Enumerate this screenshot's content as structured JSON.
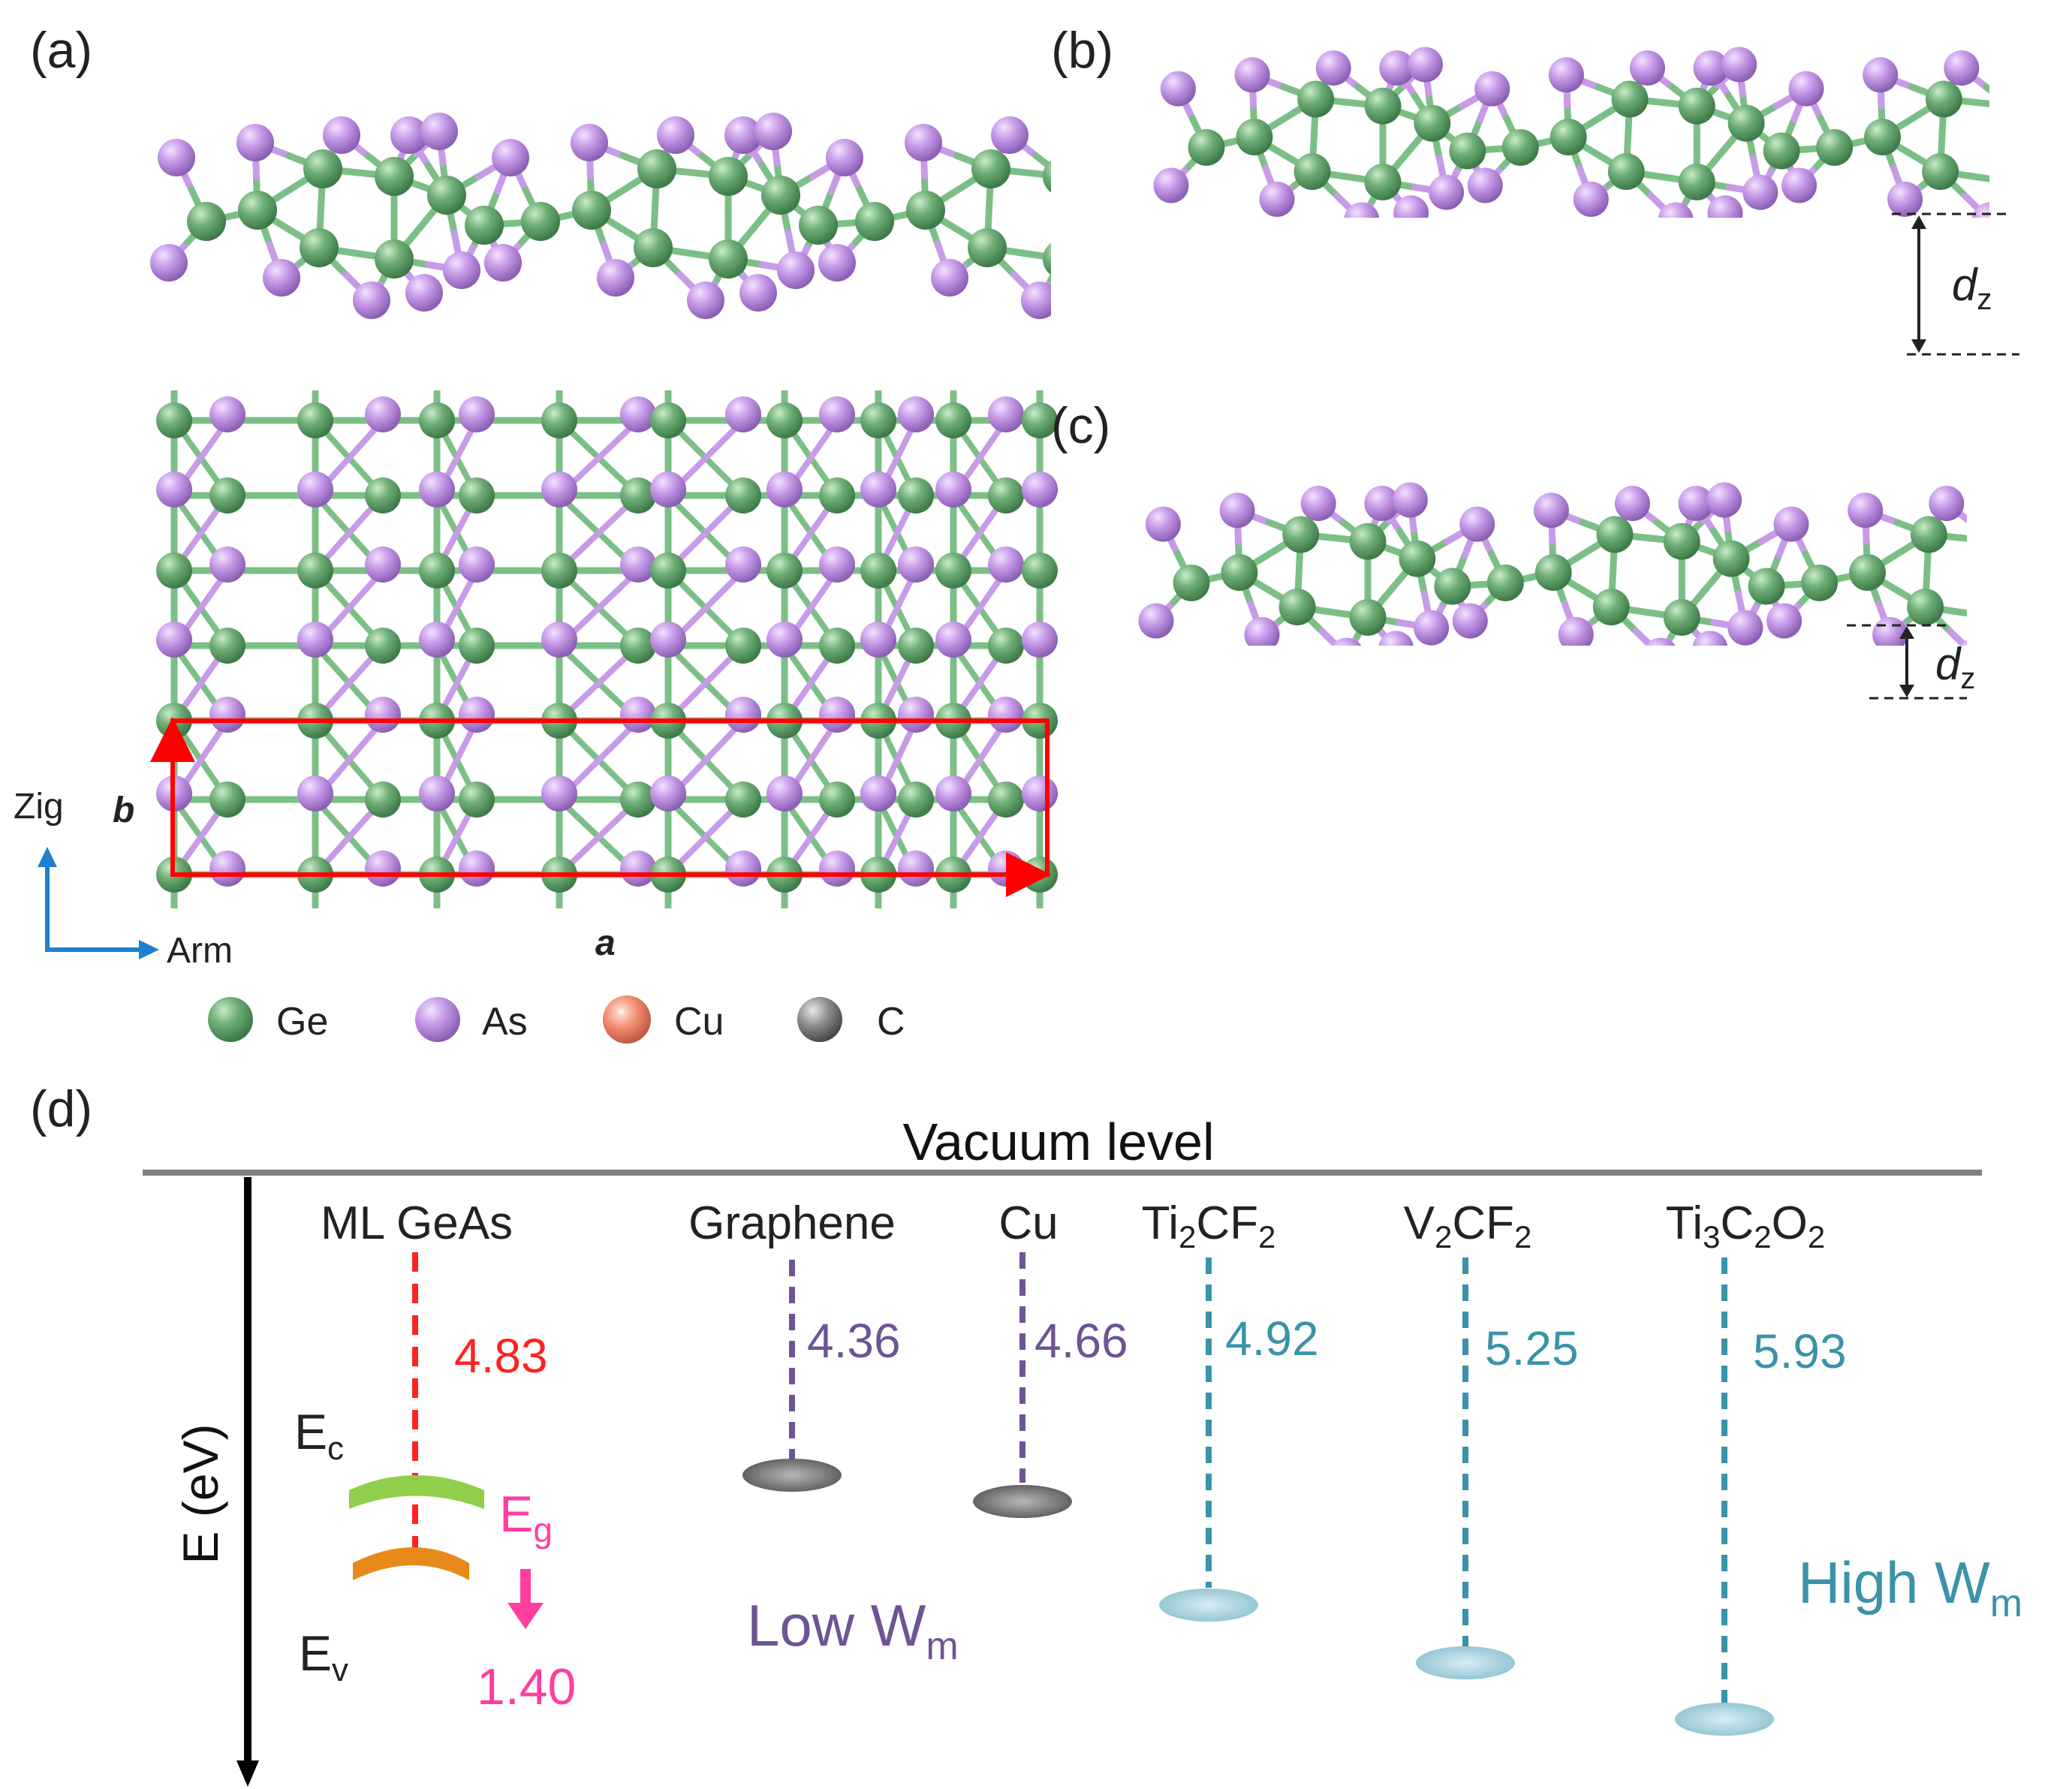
{
  "panels": {
    "a": "(a)",
    "b": "(b)",
    "c": "(c)",
    "d": "(d)"
  },
  "axes_a": {
    "zig": "Zig",
    "arm": "Arm",
    "b": "b",
    "a": "a"
  },
  "dz": {
    "d": "d",
    "sub": "z"
  },
  "legend": [
    {
      "label": "Ge",
      "color": "#6fae78"
    },
    {
      "label": "As",
      "color": "#c79be8"
    },
    {
      "label": "Cu",
      "color": "#f08a70"
    },
    {
      "label": "C",
      "color": "#8c8c8c"
    }
  ],
  "diagram": {
    "vacuum_level": "Vacuum level",
    "y_axis": "E (eV)",
    "materials": [
      {
        "name": "ML GeAs",
        "value": "4.83",
        "color": "#ff2222"
      },
      {
        "name": "Graphene",
        "value": "4.36",
        "color": "#6e5494"
      },
      {
        "name": "Cu",
        "value": "4.66",
        "color": "#6e5494"
      },
      {
        "name_parts": [
          "Ti",
          "2",
          "CF",
          "2"
        ],
        "value": "4.92",
        "color": "#3a93a8"
      },
      {
        "name_parts": [
          "V",
          "2",
          "CF",
          "2"
        ],
        "value": "5.25",
        "color": "#3a93a8"
      },
      {
        "name_parts": [
          "Ti",
          "3",
          "C",
          "2",
          "O",
          "2"
        ],
        "value": "5.93",
        "color": "#3a93a8"
      }
    ],
    "ec": {
      "main": "E",
      "sub": "c"
    },
    "ev": {
      "main": "E",
      "sub": "v"
    },
    "eg": {
      "main": "E",
      "sub": "g",
      "value": "1.40",
      "color": "#ff3ea0"
    },
    "low_wm": {
      "main": "Low W",
      "sub": "m",
      "color": "#6e5494"
    },
    "high_wm": {
      "main": "High W",
      "sub": "m",
      "color": "#3a93a8"
    }
  }
}
